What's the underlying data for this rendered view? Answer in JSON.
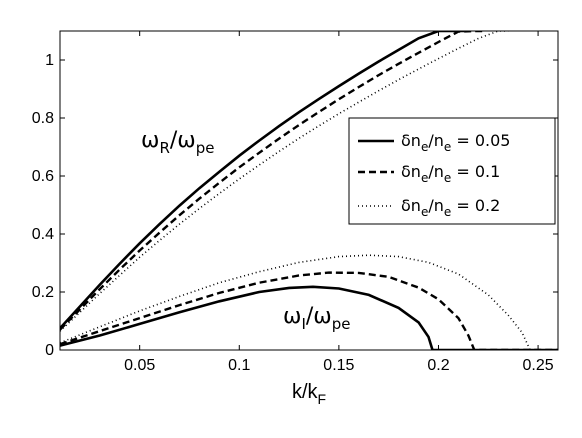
{
  "chart_data": {
    "type": "line",
    "xlabel": {
      "main": "k/k",
      "sub": "F"
    },
    "xlim": [
      0.01,
      0.26
    ],
    "ylim": [
      0,
      1.1
    ],
    "x_ticks": [
      0.05,
      0.1,
      0.15,
      0.2,
      0.25
    ],
    "x_tick_labels": [
      "0.05",
      "0.1",
      "0.15",
      "0.2",
      "0.25"
    ],
    "y_ticks": [
      0,
      0.2,
      0.4,
      0.6,
      0.8,
      1
    ],
    "y_tick_labels": [
      "0",
      "0.2",
      "0.4",
      "0.6",
      "0.8",
      "1"
    ],
    "grid": false,
    "legend_position": "right",
    "annotations": [
      {
        "id": "omega-r",
        "main": "ω",
        "sub1": "R",
        "mid": "/ω",
        "sub2": "pe",
        "x": 0.022,
        "y": 0.67
      },
      {
        "id": "omega-i",
        "main": "ω",
        "sub1": "I",
        "mid": "/ω",
        "sub2": "pe",
        "x": 0.143,
        "y": 0.075
      }
    ],
    "series": [
      {
        "name": {
          "pre": "δn",
          "sub1": "e",
          "mid": "/n",
          "sub2": "e",
          "post": " = 0.05"
        },
        "style": "solid",
        "width": 2.6,
        "curves": [
          {
            "part": "real",
            "x": [
              0.01,
              0.02,
              0.03,
              0.04,
              0.05,
              0.06,
              0.07,
              0.08,
              0.09,
              0.1,
              0.11,
              0.12,
              0.13,
              0.14,
              0.15,
              0.16,
              0.17,
              0.18,
              0.19,
              0.2,
              0.21,
              0.213
            ],
            "y": [
              0.075,
              0.15,
              0.225,
              0.298,
              0.368,
              0.434,
              0.498,
              0.558,
              0.615,
              0.67,
              0.722,
              0.772,
              0.82,
              0.866,
              0.91,
              0.953,
              0.995,
              1.035,
              1.075,
              1.1,
              1.1,
              1.1
            ]
          },
          {
            "part": "imaginary",
            "x": [
              0.01,
              0.03,
              0.05,
              0.07,
              0.09,
              0.11,
              0.125,
              0.137,
              0.15,
              0.165,
              0.18,
              0.19,
              0.195,
              0.197,
              0.26
            ],
            "y": [
              0.015,
              0.05,
              0.09,
              0.13,
              0.168,
              0.2,
              0.214,
              0.218,
              0.212,
              0.19,
              0.145,
              0.095,
              0.045,
              0.0,
              0.0
            ]
          }
        ]
      },
      {
        "name": {
          "pre": "δn",
          "sub1": "e",
          "mid": "/n",
          "sub2": "e",
          "post": " = 0.1"
        },
        "style": "dashed",
        "width": 2.4,
        "curves": [
          {
            "part": "real",
            "x": [
              0.01,
              0.02,
              0.03,
              0.04,
              0.05,
              0.06,
              0.07,
              0.08,
              0.09,
              0.1,
              0.11,
              0.12,
              0.13,
              0.14,
              0.15,
              0.16,
              0.17,
              0.18,
              0.19,
              0.2,
              0.21,
              0.218,
              0.222
            ],
            "y": [
              0.07,
              0.14,
              0.21,
              0.278,
              0.343,
              0.405,
              0.465,
              0.522,
              0.577,
              0.63,
              0.68,
              0.729,
              0.776,
              0.821,
              0.865,
              0.907,
              0.948,
              0.987,
              1.025,
              1.062,
              1.098,
              1.1,
              1.1
            ]
          },
          {
            "part": "imaginary",
            "x": [
              0.01,
              0.03,
              0.05,
              0.07,
              0.09,
              0.11,
              0.13,
              0.145,
              0.16,
              0.175,
              0.19,
              0.2,
              0.21,
              0.215,
              0.218,
              0.26
            ],
            "y": [
              0.02,
              0.065,
              0.11,
              0.155,
              0.197,
              0.232,
              0.257,
              0.267,
              0.266,
              0.252,
              0.215,
              0.175,
              0.11,
              0.05,
              0.0,
              0.0
            ]
          }
        ]
      },
      {
        "name": {
          "pre": "δn",
          "sub1": "e",
          "mid": "/n",
          "sub2": "e",
          "post": " = 0.2"
        },
        "style": "dotted",
        "width": 1.6,
        "curves": [
          {
            "part": "real",
            "x": [
              0.01,
              0.02,
              0.03,
              0.04,
              0.05,
              0.06,
              0.07,
              0.08,
              0.09,
              0.1,
              0.11,
              0.12,
              0.13,
              0.14,
              0.15,
              0.16,
              0.17,
              0.18,
              0.19,
              0.2,
              0.21,
              0.22,
              0.23,
              0.235
            ],
            "y": [
              0.065,
              0.13,
              0.195,
              0.258,
              0.32,
              0.378,
              0.434,
              0.488,
              0.54,
              0.59,
              0.638,
              0.685,
              0.73,
              0.773,
              0.815,
              0.855,
              0.894,
              0.932,
              0.969,
              1.005,
              1.04,
              1.074,
              1.1,
              1.1
            ]
          },
          {
            "part": "imaginary",
            "x": [
              0.01,
              0.03,
              0.05,
              0.07,
              0.09,
              0.11,
              0.13,
              0.15,
              0.165,
              0.18,
              0.195,
              0.21,
              0.225,
              0.235,
              0.242,
              0.246,
              0.26
            ],
            "y": [
              0.025,
              0.08,
              0.135,
              0.185,
              0.232,
              0.27,
              0.302,
              0.322,
              0.327,
              0.322,
              0.302,
              0.262,
              0.19,
              0.12,
              0.06,
              0.0,
              0.0
            ]
          }
        ]
      }
    ]
  },
  "colors": {
    "line": "#000000",
    "background": "#ffffff"
  }
}
